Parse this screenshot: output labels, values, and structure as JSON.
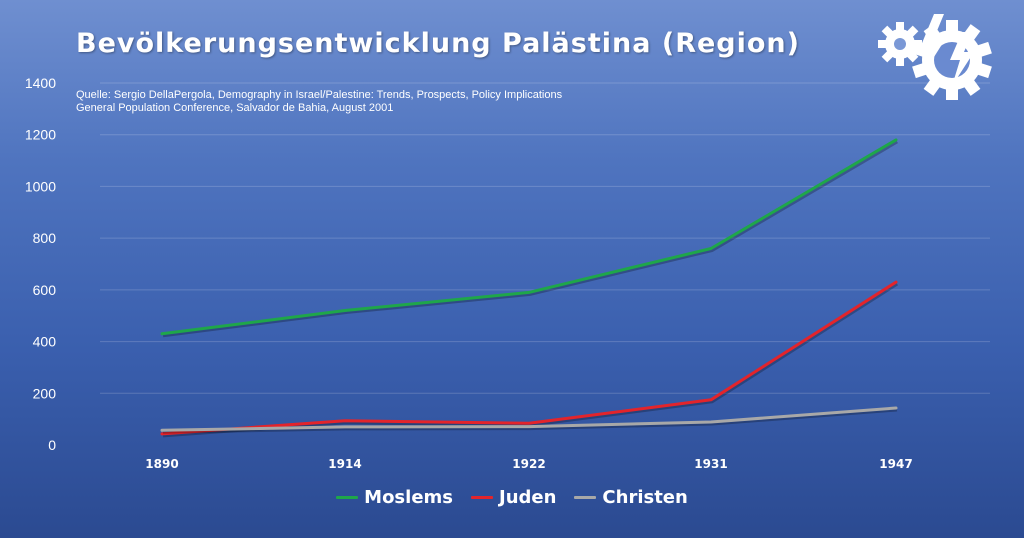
{
  "chart_data": {
    "type": "line",
    "title": "Bevölkerungsentwicklung Palästina (Region)",
    "subtitle_lines": [
      "Quelle: Sergio DellaPergola, Demography in Israel/Palestine: Trends, Prospects, Policy Implications",
      "General Population Conference, Salvador de Bahia, August 2001"
    ],
    "categories": [
      "1890",
      "1914",
      "1922",
      "1931",
      "1947"
    ],
    "ylim": [
      0,
      1400
    ],
    "yticks": [
      "0",
      "200",
      "400",
      "600",
      "800",
      "1000",
      "1200",
      "1400"
    ],
    "grid": true,
    "legend_position": "bottom",
    "series": [
      {
        "name": "Moslems",
        "color": "#1fa64a",
        "values": [
          430,
          520,
          590,
          760,
          1180
        ]
      },
      {
        "name": "Juden",
        "color": "#e3242b",
        "values": [
          43,
          94,
          84,
          175,
          630
        ]
      },
      {
        "name": "Christen",
        "color": "#a8a8a8",
        "values": [
          57,
          70,
          71,
          89,
          143
        ]
      }
    ]
  },
  "logo": {
    "icon": "gear-lightning-logo-icon"
  }
}
